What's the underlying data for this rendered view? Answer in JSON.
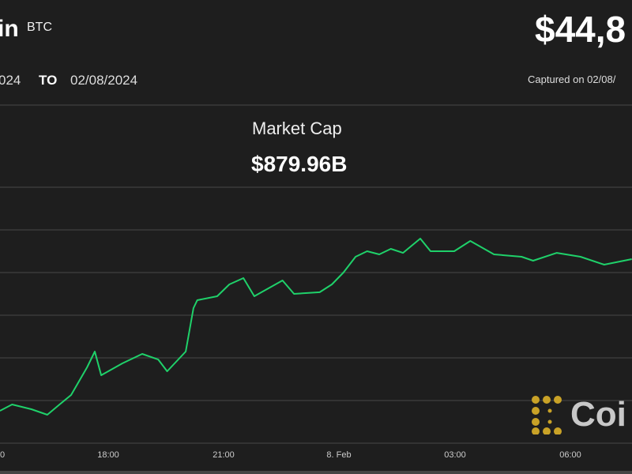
{
  "header": {
    "coin_name": "in",
    "coin_symbol": "BTC",
    "price": "$44,8",
    "date_from": "024",
    "date_to_label": "TO",
    "date_to": "02/08/2024",
    "captured": "Captured on 02/08/"
  },
  "metric": {
    "label": "Market Cap",
    "value": "$879.96B"
  },
  "logo": {
    "text": "Coi",
    "color": "#c9a227"
  },
  "chart_data": {
    "type": "line",
    "title": "",
    "xlabel": "",
    "ylabel": "",
    "ylim": [
      42500,
      45500
    ],
    "grid": true,
    "line_color": "#1fd16a",
    "x_ticks": [
      "0",
      "18:00",
      "21:00",
      "8. Feb",
      "03:00",
      "06:00"
    ],
    "points": [
      [
        "02/07 15:11",
        42880
      ],
      [
        "02/07 15:30",
        42954
      ],
      [
        "02/07 16:00",
        42898
      ],
      [
        "02/07 16:25",
        42833
      ],
      [
        "02/07 16:44",
        42954
      ],
      [
        "02/07 17:02",
        43065
      ],
      [
        "02/07 17:27",
        43389
      ],
      [
        "02/07 17:39",
        43574
      ],
      [
        "02/07 17:49",
        43296
      ],
      [
        "02/07 18:22",
        43435
      ],
      [
        "02/07 18:53",
        43546
      ],
      [
        "02/07 19:18",
        43481
      ],
      [
        "02/07 19:32",
        43343
      ],
      [
        "02/07 20:01",
        43574
      ],
      [
        "02/07 20:13",
        44083
      ],
      [
        "02/07 20:19",
        44176
      ],
      [
        "02/07 20:50",
        44222
      ],
      [
        "02/07 21:09",
        44361
      ],
      [
        "02/07 21:31",
        44435
      ],
      [
        "02/07 21:48",
        44222
      ],
      [
        "02/07 22:32",
        44407
      ],
      [
        "02/07 22:50",
        44250
      ],
      [
        "02/07 23:30",
        44269
      ],
      [
        "02/07 23:49",
        44361
      ],
      [
        "02/08 00:07",
        44500
      ],
      [
        "02/08 00:26",
        44685
      ],
      [
        "02/08 00:44",
        44750
      ],
      [
        "02/08 01:03",
        44713
      ],
      [
        "02/08 01:21",
        44778
      ],
      [
        "02/08 01:40",
        44731
      ],
      [
        "02/08 02:07",
        44898
      ],
      [
        "02/08 02:23",
        44750
      ],
      [
        "02/08 03:00",
        44750
      ],
      [
        "02/08 03:25",
        44870
      ],
      [
        "02/08 04:02",
        44713
      ],
      [
        "02/08 04:45",
        44685
      ],
      [
        "02/08 05:03",
        44639
      ],
      [
        "02/08 05:40",
        44731
      ],
      [
        "02/08 06:17",
        44685
      ],
      [
        "02/08 06:54",
        44593
      ],
      [
        "02/08 07:37",
        44657
      ]
    ]
  }
}
